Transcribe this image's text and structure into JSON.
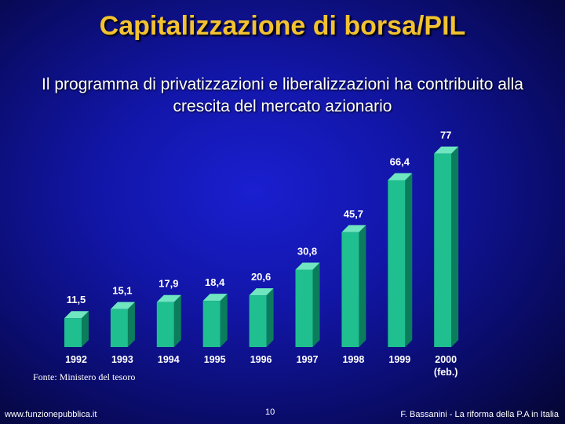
{
  "slide": {
    "title": "Capitalizzazione di borsa/PIL",
    "subtitle": "Il programma di privatizzazioni e liberalizzazioni ha contribuito alla crescita del mercato azionario",
    "source": "Fonte: Ministero del tesoro",
    "footer_left": "www.funzionepubblica.it",
    "page_number": "10",
    "footer_right": "F. Bassanini - La riforma della P.A in Italia"
  },
  "colors": {
    "title": "#f2c230",
    "bar_front": "#1fbf90",
    "bar_side": "#0c7d5c",
    "bar_top": "#6fe6bf"
  },
  "chart_data": {
    "type": "bar",
    "title": "Capitalizzazione di borsa/PIL",
    "xlabel": "",
    "ylabel": "",
    "categories": [
      "1992",
      "1993",
      "1994",
      "1995",
      "1996",
      "1997",
      "1998",
      "1999",
      "2000"
    ],
    "category_sublabels": [
      "",
      "",
      "",
      "",
      "",
      "",
      "",
      "",
      "(feb.)"
    ],
    "values": [
      11.5,
      15.1,
      17.9,
      18.4,
      20.6,
      30.8,
      45.7,
      66.4,
      77
    ],
    "value_labels": [
      "11,5",
      "15,1",
      "17,9",
      "18,4",
      "20,6",
      "30,8",
      "45,7",
      "66,4",
      "77"
    ],
    "ylim": [
      0,
      80
    ],
    "grid": false,
    "legend": "none"
  }
}
